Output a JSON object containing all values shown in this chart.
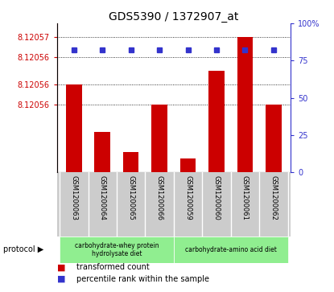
{
  "title": "GDS5390 / 1372907_at",
  "samples": [
    "GSM1200063",
    "GSM1200064",
    "GSM1200065",
    "GSM1200066",
    "GSM1200059",
    "GSM1200060",
    "GSM1200061",
    "GSM1200062"
  ],
  "bar_values": [
    8.120563,
    8.120556,
    8.120553,
    8.12056,
    8.120552,
    8.120565,
    8.12057,
    8.12056
  ],
  "percentile_values": [
    82,
    82,
    82,
    82,
    82,
    82,
    82,
    82
  ],
  "bar_color": "#cc0000",
  "dot_color": "#3333cc",
  "ymin": 8.12055,
  "ymax": 8.120572,
  "yticks_left": [
    8.12056,
    8.120563,
    8.120567,
    8.12057
  ],
  "ytick_labels_left": [
    "8.12056",
    "8.12056",
    "8.12056",
    "8.12057"
  ],
  "yticks_right": [
    0,
    25,
    50,
    75,
    100
  ],
  "ytick_labels_right": [
    "0",
    "25",
    "50",
    "75",
    "100%"
  ],
  "proto1_label": "carbohydrate-whey protein\nhydrolysate diet",
  "proto2_label": "carbohydrate-amino acid diet",
  "proto_color": "#90ee90",
  "protocol_label": "protocol",
  "legend_bar_label": "transformed count",
  "legend_dot_label": "percentile rank within the sample",
  "background_color": "#ffffff",
  "plot_bg": "#ffffff",
  "label_area_bg": "#cccccc"
}
